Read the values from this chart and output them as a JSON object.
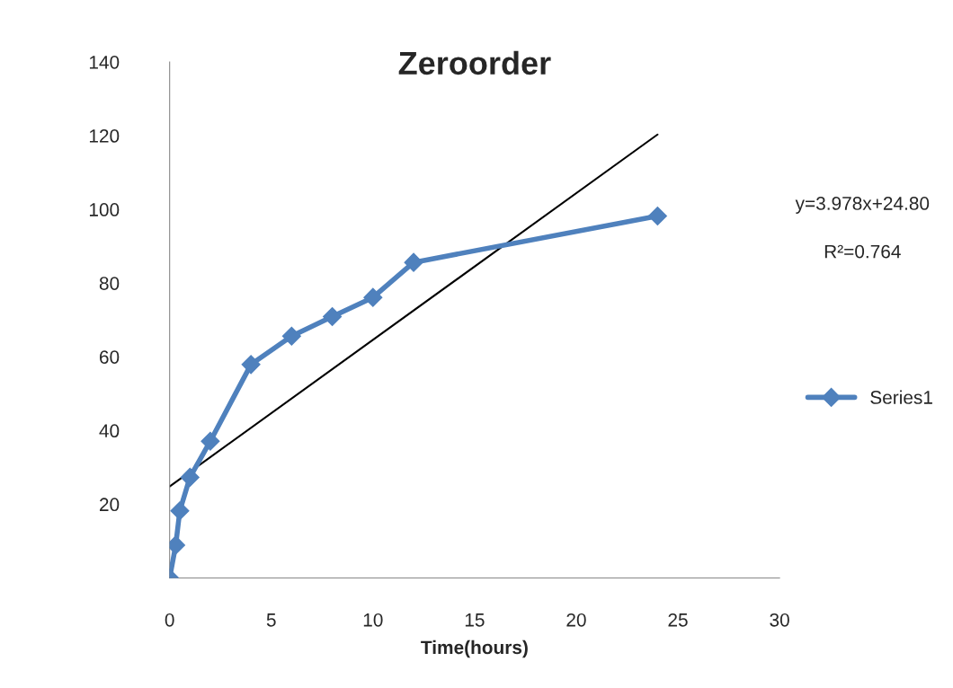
{
  "chart_data": {
    "type": "line",
    "title": "Zeroorder",
    "xlabel": "Time(hours)",
    "xlim": [
      0,
      30
    ],
    "xticks": [
      0,
      5,
      10,
      15,
      20,
      25,
      30
    ],
    "ylim": [
      0,
      140
    ],
    "yticks": [
      20,
      40,
      60,
      80,
      100,
      120,
      140
    ],
    "series": [
      {
        "name": "Series1",
        "color": "#4f81bd",
        "x": [
          0,
          0.3,
          0.5,
          1,
          2,
          4,
          6,
          8,
          10,
          12,
          24
        ],
        "values": [
          0,
          8.9,
          18.2,
          27.3,
          37.1,
          57.9,
          65.6,
          70.9,
          76.1,
          85.6,
          98.2
        ],
        "marker": "diamond"
      },
      {
        "type": "line",
        "color": "#000000",
        "x": [
          0,
          24
        ],
        "values": [
          24.8,
          120.3
        ],
        "marker": "none"
      }
    ],
    "annotations": [
      "y=3.978x+24.80",
      "R²=0.764"
    ],
    "legend": "right",
    "grid": false
  }
}
